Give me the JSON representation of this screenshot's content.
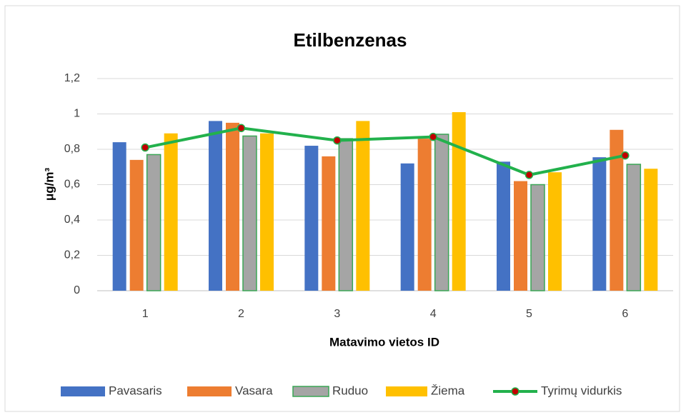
{
  "chart_data": {
    "type": "bar",
    "title": "Etilbenzenas",
    "x_label": "Matavimo vietos ID",
    "y_label": "μg/m³",
    "categories": [
      "1",
      "2",
      "3",
      "4",
      "5",
      "6"
    ],
    "series": [
      {
        "name": "Pavasaris",
        "color": "#4472c4",
        "values": [
          0.84,
          0.96,
          0.82,
          0.72,
          0.73,
          0.755
        ]
      },
      {
        "name": "Vasara",
        "color": "#ed7d31",
        "values": [
          0.74,
          0.95,
          0.76,
          0.86,
          0.62,
          0.91
        ]
      },
      {
        "name": "Ruduo",
        "color": "#a5a5a5",
        "edge_color": "#3aa655",
        "values": [
          0.77,
          0.875,
          0.86,
          0.885,
          0.6,
          0.715
        ]
      },
      {
        "name": "Žiema",
        "color": "#ffc000",
        "values": [
          0.89,
          0.89,
          0.96,
          1.01,
          0.67,
          0.69
        ]
      },
      {
        "name": "Tyrimų vidurkis",
        "type": "line",
        "color": "#22b14c",
        "marker_color": "#c00000",
        "values": [
          0.81,
          0.92,
          0.85,
          0.87,
          0.655,
          0.765
        ]
      }
    ],
    "ylim": [
      0,
      1.2
    ],
    "yticks": [
      0,
      {
        "value": 0.2,
        "label": "0,2"
      },
      {
        "value": 0.4,
        "label": "0,4"
      },
      {
        "value": 0.6,
        "label": "0,6"
      },
      {
        "value": 0.8,
        "label": "0,8"
      },
      1,
      {
        "value": 1.2,
        "label": "1,2"
      }
    ],
    "grid": true,
    "legend": "bottom"
  }
}
